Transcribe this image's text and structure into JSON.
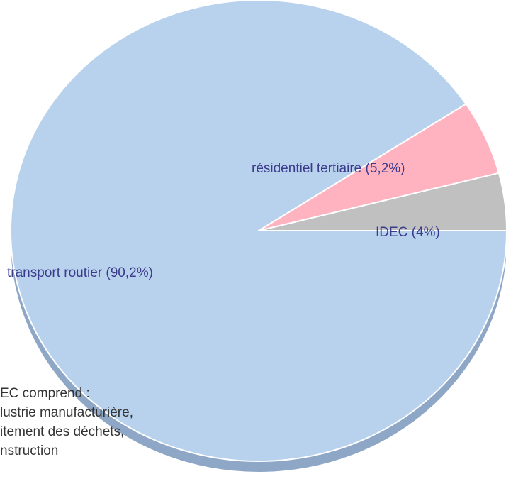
{
  "chart_data": {
    "type": "pie",
    "values": [
      90.2,
      5.2,
      4
    ],
    "value_labels": [
      "transport routier (90,2%)",
      "résidentiel tertiaire (5,2%)",
      "IDEC (4%)"
    ],
    "colors": [
      "#b8d1ec",
      "#ffb3c1",
      "#c0c0c0"
    ],
    "note": [
      "EC comprend :",
      "lustrie manufacturière,",
      "itement des déchets,",
      "nstruction"
    ]
  }
}
